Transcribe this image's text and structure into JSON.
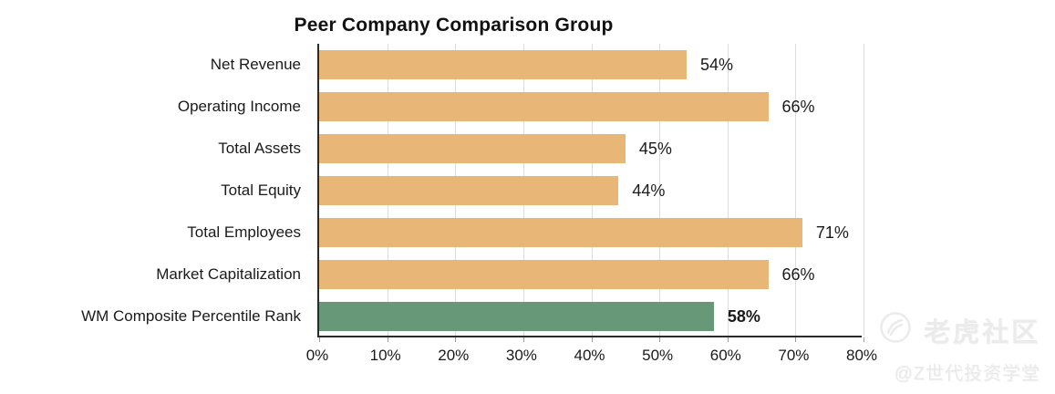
{
  "title": "Peer Company Comparison Group",
  "colors": {
    "bar": "#e8b778",
    "highlight_bar": "#679877",
    "axis": "#2b2b2b",
    "gridline": "#dcdcdc",
    "text": "#1a1a1a",
    "watermark": "#ebebeb"
  },
  "watermark": {
    "brand": "老虎社区",
    "handle": "@Z世代投资学堂",
    "icon": "tiger-logo-icon"
  },
  "chart_data": {
    "type": "bar",
    "orientation": "horizontal",
    "title": "Peer Company Comparison Group",
    "categories": [
      "Net Revenue",
      "Operating Income",
      "Total Assets",
      "Total Equity",
      "Total Employees",
      "Market Capitalization",
      "WM Composite Percentile Rank"
    ],
    "values": [
      54,
      66,
      45,
      44,
      71,
      66,
      58
    ],
    "value_labels": [
      "54%",
      "66%",
      "45%",
      "44%",
      "71%",
      "66%",
      "58%"
    ],
    "highlight_index": 6,
    "highlight_label_bold": true,
    "xlabel": "",
    "ylabel": "",
    "xlim": [
      0,
      80
    ],
    "xtick_step": 10,
    "xticks": [
      "0%",
      "10%",
      "20%",
      "30%",
      "40%",
      "50%",
      "60%",
      "70%",
      "80%"
    ],
    "grid": true,
    "legend": false
  }
}
